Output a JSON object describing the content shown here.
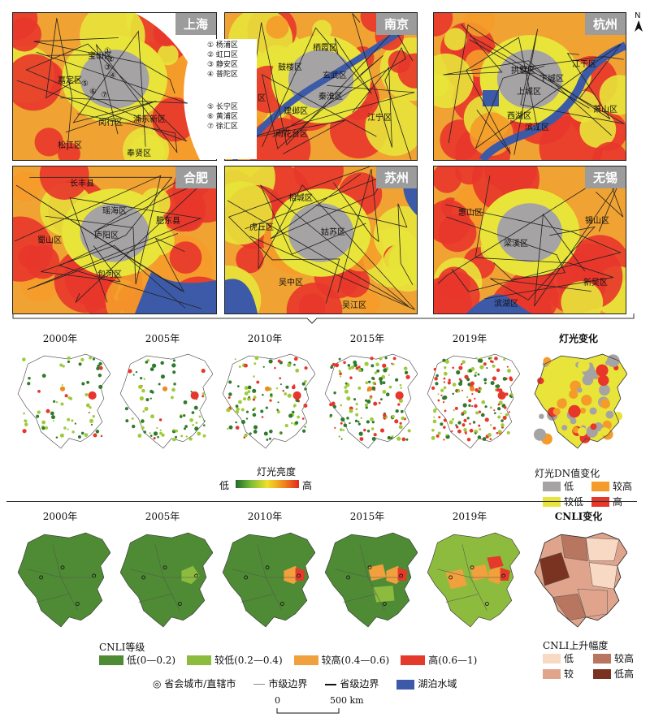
{
  "top_panels": [
    {
      "id": "shanghai",
      "title": "上海",
      "labels": [
        "宝山区",
        "嘉定区",
        "浦东新区",
        "闵行区",
        "松江区",
        "奉贤区",
        "①",
        "②",
        "③",
        "④",
        "⑤",
        "⑥",
        "⑦"
      ]
    },
    {
      "id": "nanjing",
      "title": "南京",
      "labels": [
        "栖霞区",
        "鼓楼区",
        "玄武区",
        "浦口区",
        "秦淮区",
        "建邺区",
        "江宁区",
        "雨花台区"
      ]
    },
    {
      "id": "hangzhou",
      "title": "杭州",
      "labels": [
        "拱墅区",
        "江干区",
        "下城区",
        "上城区",
        "西湖区",
        "滨江区",
        "萧山区"
      ]
    },
    {
      "id": "hefei",
      "title": "合肥",
      "labels": [
        "长丰县",
        "瑶海区",
        "肥东县",
        "蜀山区",
        "庐阳区",
        "包河区"
      ]
    },
    {
      "id": "suzhou",
      "title": "苏州",
      "labels": [
        "相城区",
        "虎丘区",
        "姑苏区",
        "吴中区",
        "吴江区"
      ]
    },
    {
      "id": "wuxi",
      "title": "无锡",
      "labels": [
        "惠山区",
        "锡山区",
        "梁溪区",
        "新吴区",
        "滨湖区"
      ]
    }
  ],
  "shanghai_legend": [
    "① 杨浦区",
    "② 虹口区",
    "③ 静安区",
    "④ 普陀区",
    "⑤ 长宁区",
    "⑥ 黄浦区",
    "⑦ 徐汇区"
  ],
  "north_label": "N",
  "years": [
    "2000年",
    "2005年",
    "2010年",
    "2015年",
    "2019年"
  ],
  "light_change_title": "灯光变化",
  "light_legend": {
    "title": "灯光亮度",
    "low": "低",
    "high": "高"
  },
  "dn_legend": {
    "title": "灯光DN值变化",
    "items": [
      {
        "label": "低",
        "color": "#a5a3a3"
      },
      {
        "label": "较高",
        "color": "#f59b2a"
      },
      {
        "label": "较低",
        "color": "#e8e43a"
      },
      {
        "label": "高",
        "color": "#e8362b"
      }
    ]
  },
  "cnli_change_title": "CNLI变化",
  "cnli_legend": {
    "title": "CNLI等级",
    "items": [
      {
        "label": "低(0—0.2)",
        "color": "#4e8b34"
      },
      {
        "label": "较低(0.2—0.4)",
        "color": "#8dbb3e"
      },
      {
        "label": "较高(0.4—0.6)",
        "color": "#f0a03c"
      },
      {
        "label": "高(0.6—1)",
        "color": "#e33a2c"
      }
    ]
  },
  "cnli_rise_legend": {
    "title": "CNLI上升幅度",
    "items": [
      {
        "label": "低",
        "color": "#f7d9c4"
      },
      {
        "label": "较高",
        "color": "#b87660"
      },
      {
        "label": "较",
        "color": "#e0a48c"
      },
      {
        "label": "低高",
        "color": "#7a3320"
      }
    ]
  },
  "bottom_legend": {
    "capital": "◎ 省会城市/直辖市",
    "city_boundary": "市级边界",
    "province_boundary": "省级边界",
    "lake": "湖泊水域"
  },
  "scale": {
    "zero": "0",
    "distance": "500 km"
  },
  "colors": {
    "red": "#e8362b",
    "orange": "#f59b2a",
    "yellow": "#e8e43a",
    "gray": "#a5a3a3",
    "water": "#3d5aa8"
  }
}
